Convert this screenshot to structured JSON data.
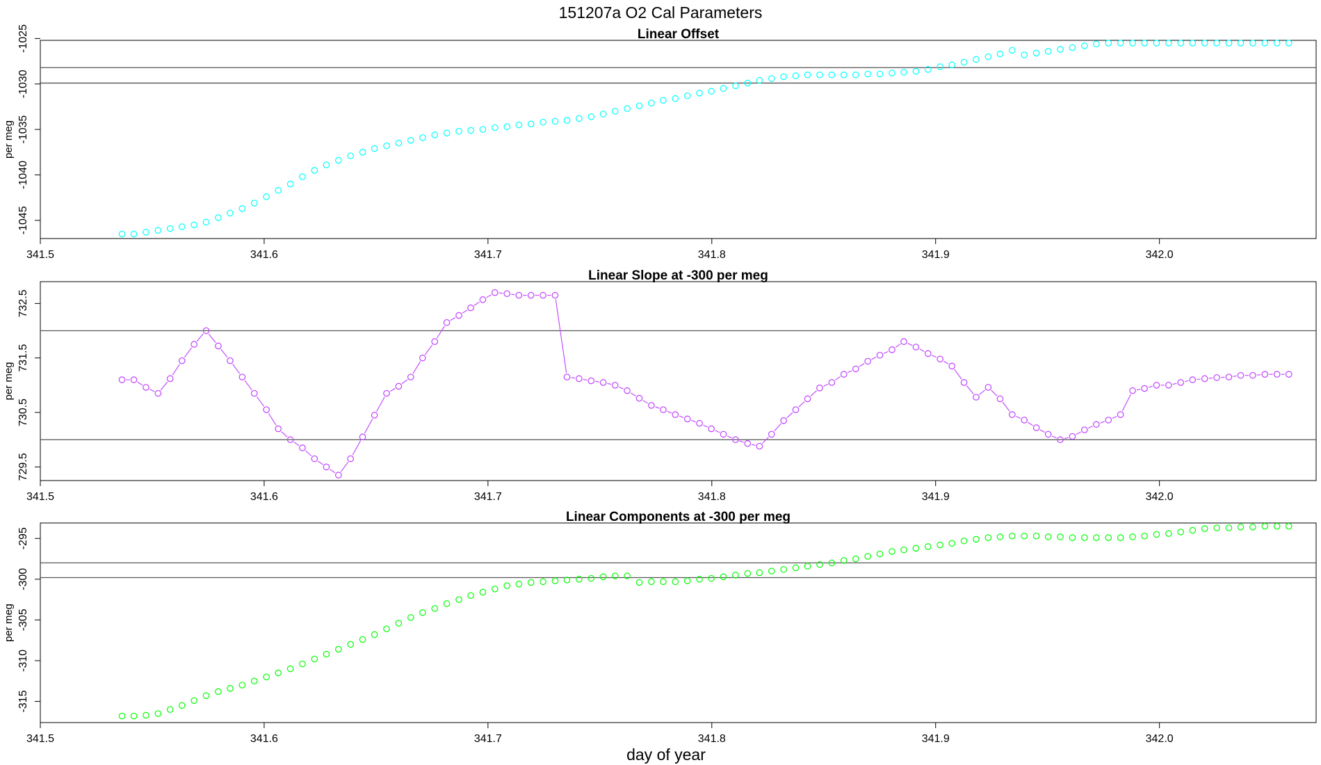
{
  "figure": {
    "title": "151207a   O2 Cal Parameters",
    "xlabel": "day of year"
  },
  "chart_data": [
    {
      "type": "scatter",
      "title": "Linear Offset",
      "ylabel": "per meg",
      "xlim": [
        341.5,
        342.07
      ],
      "ylim": [
        -1047.0,
        -1025.2
      ],
      "xticks": [
        341.5,
        341.6,
        341.7,
        341.8,
        341.9,
        342.0
      ],
      "xtick_labels": [
        "341.5",
        "341.6",
        "341.7",
        "341.8",
        "341.9",
        "342.0"
      ],
      "yticks": [
        -1045,
        -1040,
        -1035,
        -1030,
        -1025
      ],
      "ytick_labels": [
        "-1045",
        "-1040",
        "-1035",
        "-1030",
        "-1025"
      ],
      "hlines": [
        -1028.2,
        -1029.9
      ],
      "color": "#00ffff",
      "connect_gaps": false,
      "series": [
        {
          "x": [
            341.5365,
            341.5418,
            341.5472,
            341.5526,
            341.558,
            341.5633,
            341.5687,
            341.5741,
            341.5795,
            341.5848,
            341.5902,
            341.5956,
            341.601,
            341.6063,
            341.6117,
            341.6171,
            341.6225,
            341.6278,
            341.6332,
            341.6386,
            341.644,
            341.6493,
            341.6547,
            341.6601,
            341.6655,
            341.6708,
            341.6762,
            341.6816,
            341.687,
            341.6923,
            341.6977,
            341.7031,
            341.7085,
            341.7138,
            341.7192,
            341.7246,
            341.73,
            341.7353,
            341.7407,
            341.7461,
            341.7515,
            341.7568,
            341.7622,
            341.7676,
            341.773,
            341.7783,
            341.7837,
            341.7891,
            341.7945,
            341.7998,
            341.8052,
            341.8106,
            341.816,
            341.8213,
            341.8267,
            341.8321,
            341.8375,
            341.8428,
            341.8482,
            341.8536,
            341.859,
            341.8643,
            341.8697,
            341.8751,
            341.8805,
            341.8858,
            341.8912,
            341.8966,
            341.902,
            341.9073,
            341.9127,
            341.9181,
            341.9235,
            341.9288,
            341.9342,
            341.9396,
            341.945,
            341.9503,
            341.9557,
            341.9611,
            341.9665,
            341.9718,
            341.9772,
            341.9826,
            341.988,
            341.9933,
            341.9987,
            342.0041,
            342.0095,
            342.0148,
            342.0202,
            342.0256,
            342.031,
            342.0363,
            342.0417,
            342.0471,
            342.0525,
            342.0578
          ],
          "y": [
            -1046.5,
            -1046.5,
            -1046.3,
            -1046.1,
            -1045.9,
            -1045.7,
            -1045.5,
            -1045.2,
            -1044.7,
            -1044.2,
            -1043.7,
            -1043.1,
            -1042.4,
            -1041.7,
            -1041.0,
            -1040.2,
            -1039.5,
            -1038.9,
            -1038.4,
            -1037.9,
            -1037.5,
            -1037.1,
            -1036.8,
            -1036.5,
            -1036.2,
            -1035.9,
            -1035.6,
            -1035.4,
            -1035.2,
            -1035.1,
            -1035.0,
            -1034.8,
            -1034.7,
            -1034.5,
            -1034.4,
            -1034.2,
            -1034.1,
            -1034.0,
            -1033.8,
            -1033.6,
            -1033.3,
            -1033.0,
            -1032.7,
            -1032.4,
            -1032.1,
            -1031.8,
            -1031.6,
            -1031.3,
            -1031.0,
            -1030.8,
            -1030.5,
            -1030.2,
            -1029.9,
            -1029.6,
            -1029.4,
            -1029.2,
            -1029.1,
            -1029.0,
            -1029.0,
            -1029.0,
            -1029.0,
            -1029.0,
            -1028.9,
            -1028.9,
            -1028.8,
            -1028.7,
            -1028.6,
            -1028.4,
            -1028.1,
            -1027.9,
            -1027.6,
            -1027.3,
            -1027.0,
            -1026.7,
            -1026.3,
            -1026.8,
            -1026.6,
            -1026.4,
            -1026.2,
            -1026.0,
            -1025.8,
            -1025.6,
            -1025.5,
            -1025.5,
            -1025.5,
            -1025.5,
            -1025.5,
            -1025.5,
            -1025.5,
            -1025.5,
            -1025.5,
            -1025.5,
            -1025.5,
            -1025.5,
            -1025.5,
            -1025.5,
            -1025.5,
            -1025.5
          ]
        }
      ]
    },
    {
      "type": "line",
      "title": "Linear Slope at -300 per meg",
      "ylabel": "per meg",
      "xlim": [
        341.5,
        342.07
      ],
      "ylim": [
        729.25,
        732.9
      ],
      "xticks": [
        341.5,
        341.6,
        341.7,
        341.8,
        341.9,
        342.0
      ],
      "xtick_labels": [
        "341.5",
        "341.6",
        "341.7",
        "341.8",
        "341.9",
        "342.0"
      ],
      "yticks": [
        729.5,
        730.5,
        731.5,
        732.5
      ],
      "ytick_labels": [
        "729.5",
        "730.5",
        "731.5",
        "732.5"
      ],
      "hlines": [
        732.0,
        730.0
      ],
      "color": "#bf3fff",
      "connect_gaps": true,
      "series": [
        {
          "x": [
            341.5365,
            341.5418,
            341.5472,
            341.5526,
            341.558,
            341.5633,
            341.5687,
            341.5741,
            341.5795,
            341.5848,
            341.5902,
            341.5956,
            341.601,
            341.6063,
            341.6117,
            341.6171,
            341.6225,
            341.6278,
            341.6332,
            341.6386,
            341.644,
            341.6493,
            341.6547,
            341.6601,
            341.6655,
            341.6708,
            341.6762,
            341.6816,
            341.687,
            341.6923,
            341.6977,
            341.7031,
            341.7085,
            341.7138,
            341.7192,
            341.7246,
            341.73,
            341.7353,
            341.7407,
            341.7461,
            341.7515,
            341.7568,
            341.7622,
            341.7676,
            341.773,
            341.7783,
            341.7837,
            341.7891,
            341.7945,
            341.7998,
            341.8052,
            341.8106,
            341.816,
            341.8213,
            341.8267,
            341.8321,
            341.8375,
            341.8428,
            341.8482,
            341.8536,
            341.859,
            341.8643,
            341.8697,
            341.8751,
            341.8805,
            341.8858,
            341.8912,
            341.8966,
            341.902,
            341.9073,
            341.9127,
            341.9181,
            341.9235,
            341.9288,
            341.9342,
            341.9396,
            341.945,
            341.9503,
            341.9557,
            341.9611,
            341.9665,
            341.9718,
            341.9772,
            341.9826,
            341.988,
            341.9933,
            341.9987,
            342.0041,
            342.0095,
            342.0148,
            342.0202,
            342.0256,
            342.031,
            342.0363,
            342.0417,
            342.0471,
            342.0525,
            342.0578
          ],
          "y": [
            731.1,
            731.1,
            730.96,
            730.85,
            731.12,
            731.45,
            731.75,
            732.0,
            731.72,
            731.45,
            731.15,
            730.85,
            730.55,
            730.2,
            730.0,
            729.85,
            729.65,
            729.5,
            729.35,
            729.65,
            730.05,
            730.45,
            730.85,
            730.98,
            731.15,
            731.5,
            731.8,
            732.15,
            732.28,
            732.42,
            732.57,
            732.7,
            732.68,
            732.65,
            732.65,
            732.65,
            732.65,
            731.15,
            731.12,
            731.08,
            731.05,
            731.0,
            730.9,
            730.76,
            730.63,
            730.55,
            730.46,
            730.38,
            730.3,
            730.2,
            730.1,
            730.0,
            729.93,
            729.88,
            730.1,
            730.35,
            730.55,
            730.75,
            730.95,
            731.05,
            731.2,
            731.3,
            731.44,
            731.55,
            731.65,
            731.8,
            731.7,
            731.58,
            731.48,
            731.35,
            731.05,
            730.78,
            730.96,
            730.75,
            730.46,
            730.36,
            730.22,
            730.1,
            730.0,
            730.06,
            730.18,
            730.28,
            730.36,
            730.46,
            730.9,
            730.94,
            731.0,
            731.0,
            731.05,
            731.1,
            731.12,
            731.14,
            731.15,
            731.18,
            731.18,
            731.2,
            731.2,
            731.2
          ]
        }
      ]
    },
    {
      "type": "scatter",
      "title": "Linear Components at -300 per meg",
      "ylabel": "per meg",
      "xlim": [
        341.5,
        342.07
      ],
      "ylim": [
        -317.6,
        -293.1
      ],
      "xticks": [
        341.5,
        341.6,
        341.7,
        341.8,
        341.9,
        342.0
      ],
      "xtick_labels": [
        "341.5",
        "341.6",
        "341.7",
        "341.8",
        "341.9",
        "342.0"
      ],
      "yticks": [
        -315,
        -310,
        -305,
        -300,
        -295
      ],
      "ytick_labels": [
        "-315",
        "-310",
        "-305",
        "-300",
        "-295"
      ],
      "hlines": [
        -298.0,
        -299.8
      ],
      "color": "#00ff00",
      "connect_gaps": false,
      "series": [
        {
          "x": [
            341.5365,
            341.5418,
            341.5472,
            341.5526,
            341.558,
            341.5633,
            341.5687,
            341.5741,
            341.5795,
            341.5848,
            341.5902,
            341.5956,
            341.601,
            341.6063,
            341.6117,
            341.6171,
            341.6225,
            341.6278,
            341.6332,
            341.6386,
            341.644,
            341.6493,
            341.6547,
            341.6601,
            341.6655,
            341.6708,
            341.6762,
            341.6816,
            341.687,
            341.6923,
            341.6977,
            341.7031,
            341.7085,
            341.7138,
            341.7192,
            341.7246,
            341.73,
            341.7353,
            341.7407,
            341.7461,
            341.7515,
            341.7568,
            341.7622,
            341.7676,
            341.773,
            341.7783,
            341.7837,
            341.7891,
            341.7945,
            341.7998,
            341.8052,
            341.8106,
            341.816,
            341.8213,
            341.8267,
            341.8321,
            341.8375,
            341.8428,
            341.8482,
            341.8536,
            341.859,
            341.8643,
            341.8697,
            341.8751,
            341.8805,
            341.8858,
            341.8912,
            341.8966,
            341.902,
            341.9073,
            341.9127,
            341.9181,
            341.9235,
            341.9288,
            341.9342,
            341.9396,
            341.945,
            341.9503,
            341.9557,
            341.9611,
            341.9665,
            341.9718,
            341.9772,
            341.9826,
            341.988,
            341.9933,
            341.9987,
            342.0041,
            342.0095,
            342.0148,
            342.0202,
            342.0256,
            342.031,
            342.0363,
            342.0417,
            342.0471,
            342.0525,
            342.0578
          ],
          "y": [
            -316.8,
            -316.8,
            -316.7,
            -316.5,
            -316.0,
            -315.5,
            -314.9,
            -314.3,
            -313.8,
            -313.4,
            -313.0,
            -312.5,
            -312.0,
            -311.5,
            -311.0,
            -310.4,
            -309.8,
            -309.2,
            -308.6,
            -308.0,
            -307.4,
            -306.8,
            -306.1,
            -305.4,
            -304.7,
            -304.1,
            -303.6,
            -303.0,
            -302.5,
            -302.0,
            -301.6,
            -301.2,
            -300.8,
            -300.6,
            -300.4,
            -300.3,
            -300.2,
            -300.1,
            -300.0,
            -299.9,
            -299.7,
            -299.6,
            -299.6,
            -300.4,
            -300.3,
            -300.3,
            -300.3,
            -300.2,
            -300.0,
            -299.9,
            -299.7,
            -299.5,
            -299.3,
            -299.2,
            -299.0,
            -298.8,
            -298.6,
            -298.4,
            -298.2,
            -298.0,
            -297.7,
            -297.5,
            -297.2,
            -296.9,
            -296.6,
            -296.4,
            -296.2,
            -296.0,
            -295.8,
            -295.6,
            -295.3,
            -295.1,
            -294.9,
            -294.8,
            -294.7,
            -294.7,
            -294.7,
            -294.8,
            -294.8,
            -294.9,
            -294.9,
            -294.9,
            -294.9,
            -294.9,
            -294.8,
            -294.7,
            -294.5,
            -294.4,
            -294.2,
            -294.0,
            -293.8,
            -293.7,
            -293.7,
            -293.6,
            -293.6,
            -293.5,
            -293.5,
            -293.5
          ]
        }
      ]
    }
  ]
}
